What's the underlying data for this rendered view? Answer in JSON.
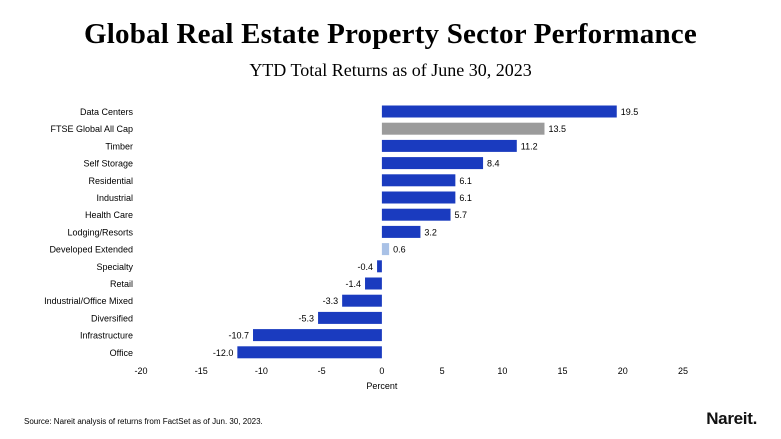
{
  "chart_data": {
    "type": "bar",
    "orientation": "horizontal",
    "title": "Global Real Estate Property Sector Performance",
    "subtitle": "YTD Total Returns as of June 30, 2023",
    "xlabel": "Percent",
    "ylabel": "",
    "xlim": [
      -20,
      25
    ],
    "xticks": [
      -20,
      -15,
      -10,
      -5,
      0,
      5,
      10,
      15,
      20,
      25
    ],
    "grid": false,
    "categories": [
      "Data Centers",
      "FTSE Global All Cap",
      "Timber",
      "Self Storage",
      "Residential",
      "Industrial",
      "Health Care",
      "Lodging/Resorts",
      "Developed Extended",
      "Specialty",
      "Retail",
      "Industrial/Office Mixed",
      "Diversified",
      "Infrastructure",
      "Office"
    ],
    "values": [
      19.5,
      13.5,
      11.2,
      8.4,
      6.1,
      6.1,
      5.7,
      3.2,
      0.6,
      -0.4,
      -1.4,
      -3.3,
      -5.3,
      -10.7,
      -12.0
    ],
    "value_labels": [
      "19.5",
      "13.5",
      "11.2",
      "8.4",
      "6.1",
      "6.1",
      "5.7",
      "3.2",
      "0.6",
      "-0.4",
      "-1.4",
      "-3.3",
      "-5.3",
      "-10.7",
      "-12.0"
    ],
    "bar_colors": [
      "#1a3bbf",
      "#9b9b9b",
      "#1a3bbf",
      "#1a3bbf",
      "#1a3bbf",
      "#1a3bbf",
      "#1a3bbf",
      "#1a3bbf",
      "#a9c1e6",
      "#1a3bbf",
      "#1a3bbf",
      "#1a3bbf",
      "#1a3bbf",
      "#1a3bbf",
      "#1a3bbf"
    ]
  },
  "footer": {
    "source": "Source: Nareit analysis of returns from FactSet as of Jun. 30, 2023.",
    "logo": "Nareit."
  }
}
